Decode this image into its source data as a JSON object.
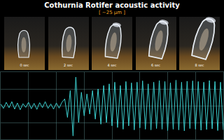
{
  "header": {
    "title": "Cothurnia Rotifer acoustic activity",
    "subtitle": "[ ~25 μm ]"
  },
  "frames": [
    {
      "label": "0 sec"
    },
    {
      "label": "2 sec"
    },
    {
      "label": "4 sec"
    },
    {
      "label": "6 sec"
    },
    {
      "label": "8 sec"
    }
  ],
  "chart_data": {
    "type": "line",
    "color": "#3ccfcf",
    "x": [
      0,
      4,
      8,
      12,
      16,
      20,
      24,
      28,
      32,
      36,
      40,
      44,
      48,
      52,
      56,
      60,
      64,
      68,
      72,
      76,
      80,
      84,
      88,
      92,
      96,
      100,
      104,
      108,
      112,
      116,
      120,
      124,
      128,
      132,
      136,
      140,
      144,
      148,
      152,
      156,
      160,
      164,
      168,
      172,
      176,
      180,
      184,
      188,
      192,
      196,
      200,
      204,
      208,
      212,
      216,
      220,
      224,
      228,
      232,
      236,
      240,
      244,
      248,
      252,
      256,
      260,
      264,
      268,
      272,
      276,
      280,
      284,
      288,
      292,
      296,
      300,
      304,
      308,
      312,
      316,
      320
    ],
    "values": [
      0.05,
      -0.08,
      0.1,
      -0.06,
      0.12,
      -0.1,
      0.08,
      -0.12,
      0.06,
      -0.05,
      0.1,
      -0.09,
      0.07,
      -0.11,
      0.09,
      -0.06,
      0.12,
      -0.08,
      0.05,
      -0.1,
      0.08,
      -0.07,
      0.1,
      0.2,
      -0.35,
      0.45,
      -0.9,
      0.85,
      -0.5,
      0.4,
      -0.3,
      0.35,
      -0.25,
      0.45,
      -0.4,
      0.5,
      -0.55,
      0.6,
      -0.5,
      0.65,
      -0.6,
      0.7,
      -0.65,
      0.6,
      -0.7,
      0.72,
      -0.6,
      0.68,
      -0.72,
      0.7,
      -0.66,
      0.74,
      -0.7,
      0.65,
      -0.72,
      0.7,
      -0.68,
      0.75,
      -0.7,
      0.72,
      -0.74,
      0.68,
      -0.7,
      0.76,
      -0.72,
      0.7,
      -0.75,
      0.73,
      -0.68,
      0.74,
      -0.7,
      0.72,
      -0.73,
      0.7,
      -0.71,
      0.75,
      -0.69,
      0.72,
      -0.74,
      0.7,
      -0.72
    ],
    "xlim": [
      0,
      320
    ],
    "ylim": [
      -1,
      1
    ],
    "xticks": [
      0,
      40,
      80,
      120,
      160,
      200,
      240,
      280,
      320
    ],
    "yticks": [
      -1,
      -0.5,
      0,
      0.5,
      1
    ],
    "grid": true,
    "tick_labels": false
  }
}
